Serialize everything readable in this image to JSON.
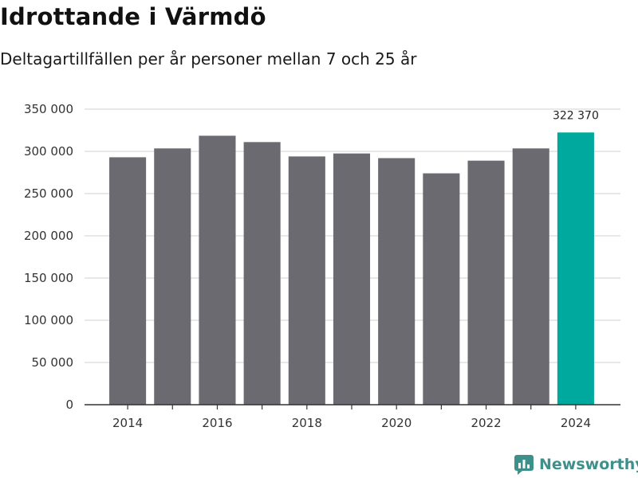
{
  "title": "Idrottande i Värmdö",
  "subtitle": "Deltagartillfällen per år personer mellan 7 och 25 år",
  "brand": {
    "name": "Newsworthy",
    "color": "#3f8f8a"
  },
  "colors": {
    "bar": "#6b6a70",
    "highlight": "#00a99d",
    "grid": "#d9d9d9",
    "axis": "#333333"
  },
  "chart_data": {
    "type": "bar",
    "title": "Idrottande i Värmdö",
    "subtitle": "Deltagartillfällen per år personer mellan 7 och 25 år",
    "xlabel": "",
    "ylabel": "",
    "categories": [
      "2014",
      "2015",
      "2016",
      "2017",
      "2018",
      "2019",
      "2020",
      "2021",
      "2022",
      "2023",
      "2024"
    ],
    "values": [
      293000,
      303500,
      318500,
      311000,
      294000,
      297500,
      292000,
      274000,
      289000,
      303500,
      322370
    ],
    "highlight_index": 10,
    "ylim": [
      0,
      350000
    ],
    "yticks": [
      0,
      50000,
      100000,
      150000,
      200000,
      250000,
      300000,
      350000
    ],
    "ytick_labels": [
      "0",
      "50 000",
      "100 000",
      "150 000",
      "200 000",
      "250 000",
      "300 000",
      "350 000"
    ],
    "xtick_labels": [
      "2014",
      "",
      "2016",
      "",
      "2018",
      "",
      "2020",
      "",
      "2022",
      "",
      "2024"
    ],
    "data_labels": [
      {
        "index": 10,
        "text": "322 370"
      }
    ],
    "grid": true,
    "legend": "none"
  }
}
